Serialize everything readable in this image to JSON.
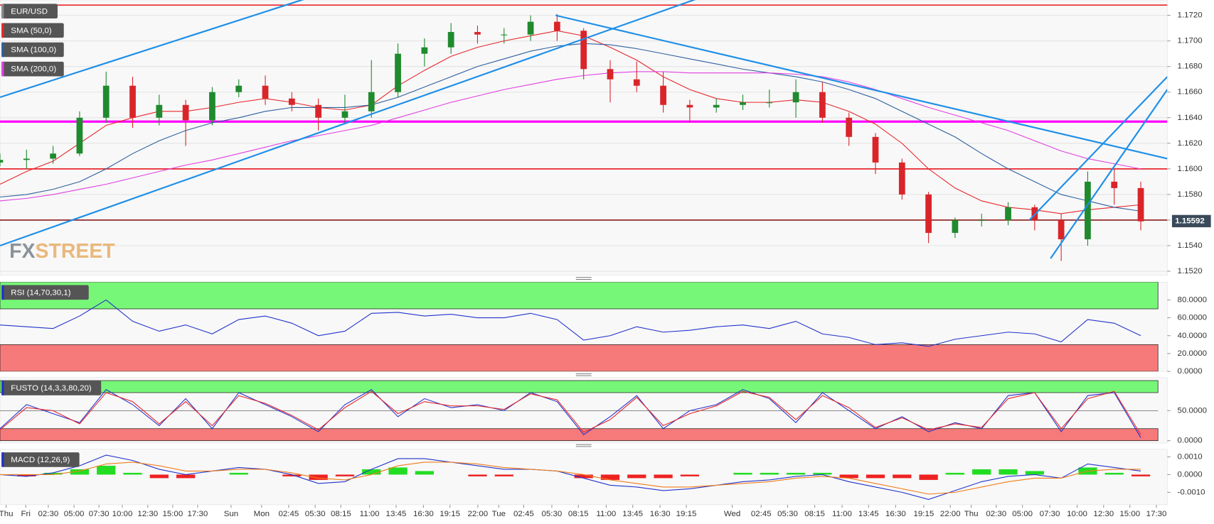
{
  "chart_data": [
    {
      "type": "candlestick",
      "title": "EUR/USD",
      "x": [
        0,
        10,
        20,
        30,
        40,
        50,
        60,
        70,
        80,
        90,
        100,
        110,
        120,
        130,
        140,
        150,
        160,
        170,
        180,
        190,
        200,
        210,
        220,
        230,
        240,
        250,
        260,
        270,
        280,
        290,
        300,
        310,
        320,
        330,
        340,
        350,
        360,
        370,
        380,
        390,
        400,
        410,
        420,
        430
      ],
      "open": [
        1.1605,
        1.1607,
        1.1608,
        1.1612,
        1.164,
        1.1665,
        1.164,
        1.165,
        1.1638,
        1.166,
        1.1665,
        1.1655,
        1.165,
        1.164,
        1.1645,
        1.166,
        1.169,
        1.1695,
        1.1707,
        1.1705,
        1.1705,
        1.1715,
        1.1708,
        1.1678,
        1.167,
        1.1665,
        1.165,
        1.1648,
        1.165,
        1.1652,
        1.1652,
        1.166,
        1.164,
        1.1625,
        1.1605,
        1.158,
        1.155,
        1.156,
        1.156,
        1.157,
        1.156,
        1.1545,
        1.159,
        1.1585
      ],
      "high": [
        1.1612,
        1.1615,
        1.1618,
        1.1645,
        1.1676,
        1.1672,
        1.1658,
        1.1654,
        1.1664,
        1.167,
        1.1673,
        1.166,
        1.1655,
        1.1658,
        1.1685,
        1.1698,
        1.1702,
        1.1714,
        1.1712,
        1.171,
        1.172,
        1.1721,
        1.171,
        1.1685,
        1.1684,
        1.1676,
        1.1654,
        1.1655,
        1.1658,
        1.1662,
        1.167,
        1.1668,
        1.1644,
        1.1628,
        1.1608,
        1.1582,
        1.1562,
        1.1565,
        1.1574,
        1.1572,
        1.1565,
        1.1598,
        1.16,
        1.159
      ],
      "low": [
        1.1602,
        1.16,
        1.1604,
        1.161,
        1.1636,
        1.1632,
        1.1634,
        1.1618,
        1.1634,
        1.1656,
        1.165,
        1.1645,
        1.163,
        1.1636,
        1.164,
        1.1656,
        1.168,
        1.169,
        1.1698,
        1.1698,
        1.17,
        1.17,
        1.167,
        1.1652,
        1.166,
        1.1644,
        1.1636,
        1.1644,
        1.1646,
        1.1648,
        1.164,
        1.1636,
        1.1618,
        1.1596,
        1.1576,
        1.1542,
        1.1546,
        1.1555,
        1.1556,
        1.1552,
        1.1528,
        1.154,
        1.1572,
        1.1552
      ],
      "close": [
        1.1607,
        1.1608,
        1.1612,
        1.164,
        1.1665,
        1.164,
        1.165,
        1.1638,
        1.166,
        1.1665,
        1.1655,
        1.165,
        1.164,
        1.1645,
        1.166,
        1.169,
        1.1695,
        1.1707,
        1.1705,
        1.1705,
        1.1715,
        1.1708,
        1.1678,
        1.167,
        1.1665,
        1.165,
        1.1648,
        1.165,
        1.1652,
        1.1652,
        1.166,
        1.164,
        1.1625,
        1.1605,
        1.158,
        1.155,
        1.156,
        1.156,
        1.157,
        1.156,
        1.1545,
        1.159,
        1.1585,
        1.1559
      ],
      "up_color": "#1f8a2e",
      "down_color": "#d9252a",
      "series": [
        {
          "name": "SMA (50,0)",
          "color": "#e8262b",
          "values": [
            1.1588,
            1.1598,
            1.1606,
            1.162,
            1.1634,
            1.164,
            1.1645,
            1.1645,
            1.1648,
            1.1652,
            1.1655,
            1.1652,
            1.1648,
            1.1646,
            1.165,
            1.1665,
            1.1677,
            1.1688,
            1.1695,
            1.17,
            1.1704,
            1.1708,
            1.1704,
            1.1695,
            1.1685,
            1.1672,
            1.1662,
            1.1655,
            1.1652,
            1.1652,
            1.1654,
            1.1652,
            1.1645,
            1.1635,
            1.162,
            1.16,
            1.1585,
            1.1575,
            1.157,
            1.1568,
            1.1565,
            1.1568,
            1.157,
            1.1572
          ]
        },
        {
          "name": "SMA (100,0)",
          "color": "#2f5f9e",
          "values": [
            1.1578,
            1.158,
            1.1584,
            1.159,
            1.16,
            1.1612,
            1.1622,
            1.163,
            1.1636,
            1.164,
            1.1645,
            1.1648,
            1.1648,
            1.1648,
            1.165,
            1.1656,
            1.1664,
            1.1672,
            1.168,
            1.1686,
            1.1692,
            1.1696,
            1.1698,
            1.1697,
            1.1694,
            1.169,
            1.1686,
            1.1682,
            1.1678,
            1.1675,
            1.1672,
            1.1668,
            1.1662,
            1.1655,
            1.1645,
            1.1635,
            1.1625,
            1.1612,
            1.16,
            1.159,
            1.158,
            1.1575,
            1.157,
            1.1567
          ]
        },
        {
          "name": "SMA (200,0)",
          "color": "#e040e0",
          "values": [
            1.1575,
            1.1577,
            1.158,
            1.1584,
            1.1588,
            1.1593,
            1.1598,
            1.1603,
            1.1607,
            1.1612,
            1.1617,
            1.1622,
            1.1626,
            1.163,
            1.1634,
            1.164,
            1.1646,
            1.1652,
            1.1657,
            1.1662,
            1.1666,
            1.167,
            1.1673,
            1.1675,
            1.1676,
            1.1676,
            1.1675,
            1.1675,
            1.1675,
            1.1675,
            1.1674,
            1.1672,
            1.1668,
            1.1662,
            1.1655,
            1.1648,
            1.1642,
            1.1636,
            1.163,
            1.1622,
            1.1614,
            1.1608,
            1.1604,
            1.16
          ]
        }
      ],
      "levels": [
        {
          "value": 1.1728,
          "color": "#e8262b",
          "width": 1.5
        },
        {
          "value": 1.1637,
          "color": "#ff00ff",
          "width": 3
        },
        {
          "value": 1.16,
          "color": "#e8262b",
          "width": 1.5
        },
        {
          "value": 1.156,
          "color": "#8b1a1a",
          "width": 1.5
        }
      ],
      "trendlines": [
        {
          "from": [
            0,
            1.1656
          ],
          "to": [
            115.2,
            1.1733
          ],
          "color": "#1e8fe8"
        },
        {
          "from": [
            0,
            1.154
          ],
          "to": [
            262.8,
            1.1733
          ],
          "color": "#1e8fe8"
        },
        {
          "from": [
            209.4,
            1.172
          ],
          "to": [
            440,
            1.1608
          ],
          "color": "#1e8fe8"
        },
        {
          "from": [
            388,
            1.156
          ],
          "to": [
            440,
            1.1672
          ],
          "color": "#1e8fe8"
        },
        {
          "from": [
            396,
            1.153
          ],
          "to": [
            440,
            1.1662
          ],
          "color": "#1e8fe8"
        }
      ],
      "last_price": 1.15592,
      "watermark": {
        "prefix": "FX",
        "suffix": "STREET"
      },
      "ylim": [
        1.1517,
        1.1732
      ],
      "yticks": [
        {
          "value": 1.152,
          "label": "1.1520"
        },
        {
          "value": 1.154,
          "label": "1.1540"
        },
        {
          "value": 1.156,
          "label": "1.1560"
        },
        {
          "value": 1.158,
          "label": "1.1580"
        },
        {
          "value": 1.16,
          "label": "1.1600"
        },
        {
          "value": 1.162,
          "label": "1.1620"
        },
        {
          "value": 1.164,
          "label": "1.1640"
        },
        {
          "value": 1.166,
          "label": "1.1660"
        },
        {
          "value": 1.168,
          "label": "1.1680"
        },
        {
          "value": 1.17,
          "label": "1.1700"
        },
        {
          "value": 1.172,
          "label": "1.1720"
        }
      ],
      "grid": true,
      "xlim": [
        0,
        440
      ],
      "xticks": [
        {
          "value": 2.3,
          "label": "Thu"
        },
        {
          "value": 9.7,
          "label": "Fri"
        },
        {
          "value": 18.2,
          "label": "02:30"
        },
        {
          "value": 27.9,
          "label": "05:00"
        },
        {
          "value": 37.3,
          "label": "07:30"
        },
        {
          "value": 46.1,
          "label": "10:00"
        },
        {
          "value": 55.7,
          "label": "12:30"
        },
        {
          "value": 65.1,
          "label": "15:00"
        },
        {
          "value": 74.5,
          "label": "17:30"
        },
        {
          "value": 87.1,
          "label": "Sun"
        },
        {
          "value": 98.6,
          "label": "Mon"
        },
        {
          "value": 108.8,
          "label": "02:45"
        },
        {
          "value": 118.8,
          "label": "05:30"
        },
        {
          "value": 128.5,
          "label": "08:15"
        },
        {
          "value": 139.3,
          "label": "11:00"
        },
        {
          "value": 149.3,
          "label": "13:45"
        },
        {
          "value": 159.6,
          "label": "16:30"
        },
        {
          "value": 169.6,
          "label": "19:15"
        },
        {
          "value": 180.1,
          "label": "22:00"
        },
        {
          "value": 188,
          "label": "Tue"
        },
        {
          "value": 197.4,
          "label": "02:45"
        },
        {
          "value": 208,
          "label": "05:30"
        },
        {
          "value": 218,
          "label": "08:15"
        },
        {
          "value": 228.5,
          "label": "11:00"
        },
        {
          "value": 238.5,
          "label": "13:45"
        },
        {
          "value": 248.8,
          "label": "16:30"
        },
        {
          "value": 258.7,
          "label": "19:15"
        },
        {
          "value": 276,
          "label": "Wed"
        },
        {
          "value": 286.9,
          "label": "02:45"
        },
        {
          "value": 296.9,
          "label": "05:30"
        },
        {
          "value": 307.1,
          "label": "08:15"
        },
        {
          "value": 317.4,
          "label": "11:00"
        },
        {
          "value": 327.4,
          "label": "13:45"
        },
        {
          "value": 337.6,
          "label": "16:30"
        },
        {
          "value": 348.2,
          "label": "19:15"
        },
        {
          "value": 358.2,
          "label": "22:00"
        },
        {
          "value": 366.1,
          "label": "Thu"
        },
        {
          "value": 375.5,
          "label": "02:30"
        },
        {
          "value": 385.4,
          "label": "05:00"
        },
        {
          "value": 395.7,
          "label": "07:30"
        },
        {
          "value": 406,
          "label": "10:00"
        },
        {
          "value": 416,
          "label": "12:30"
        },
        {
          "value": 425.9,
          "label": "15:00"
        },
        {
          "value": 435.9,
          "label": "17:30"
        }
      ]
    },
    {
      "type": "line",
      "title": "RSI (14,70,30,1)",
      "series": [
        {
          "color": "#2233cc",
          "values": [
            52,
            50,
            48,
            62,
            80,
            56,
            45,
            52,
            42,
            58,
            62,
            54,
            40,
            45,
            65,
            66,
            62,
            64,
            60,
            60,
            65,
            58,
            35,
            40,
            50,
            44,
            46,
            50,
            52,
            48,
            56,
            42,
            38,
            30,
            32,
            28,
            36,
            40,
            44,
            42,
            33,
            58,
            54,
            40
          ]
        }
      ],
      "zones": [
        {
          "range": [
            70,
            100
          ],
          "color": "#77f777"
        },
        {
          "range": [
            0,
            30
          ],
          "color": "#f77a7a"
        }
      ],
      "ylim": [
        0,
        100
      ],
      "yticks": [
        {
          "value": 0,
          "label": "0.0000"
        },
        {
          "value": 20,
          "label": "20.0000"
        },
        {
          "value": 40,
          "label": "40.0000"
        },
        {
          "value": 60,
          "label": "60.0000"
        },
        {
          "value": 80,
          "label": "80.0000"
        }
      ]
    },
    {
      "type": "line",
      "title": "FUSTO (14,3,3,80,20)",
      "series": [
        {
          "color": "#2233cc",
          "values": [
            20,
            60,
            45,
            30,
            85,
            60,
            25,
            70,
            20,
            80,
            60,
            40,
            15,
            60,
            85,
            40,
            70,
            55,
            60,
            50,
            80,
            65,
            10,
            40,
            75,
            20,
            50,
            60,
            85,
            70,
            30,
            80,
            50,
            20,
            40,
            15,
            30,
            20,
            75,
            80,
            15,
            75,
            80,
            5
          ]
        },
        {
          "color": "#e8262b",
          "values": [
            18,
            55,
            50,
            28,
            80,
            65,
            28,
            65,
            25,
            75,
            62,
            42,
            18,
            55,
            82,
            45,
            65,
            58,
            58,
            52,
            78,
            68,
            14,
            35,
            72,
            25,
            45,
            58,
            82,
            72,
            35,
            75,
            55,
            22,
            38,
            18,
            28,
            22,
            70,
            80,
            20,
            70,
            82,
            10
          ]
        }
      ],
      "zones": [
        {
          "range": [
            80,
            100
          ],
          "color": "#77f777"
        },
        {
          "range": [
            0,
            20
          ],
          "color": "#f77a7a"
        }
      ],
      "midline": 50,
      "ylim": [
        -4,
        105
      ],
      "yticks": [
        {
          "value": 0,
          "label": "0.0000"
        },
        {
          "value": 50,
          "label": "50.0000"
        }
      ]
    },
    {
      "type": "macd",
      "title": "MACD (12,26,9)",
      "series": [
        {
          "color": "#2233cc",
          "values": [
            0,
            -0.0001,
            0.0001,
            0.0005,
            0.0011,
            0.0008,
            0.0003,
            0,
            0.0002,
            0.0004,
            0.0003,
            0,
            -0.0005,
            -0.0004,
            0.0003,
            0.0009,
            0.0009,
            0.0007,
            0.0005,
            0.0003,
            0.0003,
            0.0002,
            -0.0002,
            -0.0006,
            -0.0007,
            -0.0009,
            -0.0008,
            -0.0006,
            -0.0004,
            -0.0003,
            -0.0001,
            0,
            -0.0004,
            -0.0007,
            -0.001,
            -0.0014,
            -0.0009,
            -0.0004,
            -0.0001,
            0,
            -0.0002,
            0.0006,
            0.0004,
            0.0002
          ]
        },
        {
          "color": "#f07d1a",
          "values": [
            0,
            0,
            0,
            0.0002,
            0.0006,
            0.0007,
            0.0005,
            0.0002,
            0.0002,
            0.0003,
            0.0003,
            0.0001,
            -0.0002,
            -0.0003,
            0,
            0.0005,
            0.0007,
            0.0007,
            0.0006,
            0.0004,
            0.0003,
            0.0002,
            0,
            -0.0003,
            -0.0005,
            -0.0007,
            -0.0007,
            -0.0006,
            -0.0005,
            -0.0004,
            -0.0002,
            -0.0001,
            -0.0002,
            -0.0005,
            -0.0008,
            -0.0011,
            -0.001,
            -0.0007,
            -0.0004,
            -0.0002,
            -0.0002,
            0.0002,
            0.0003,
            0.0003
          ]
        }
      ],
      "histogram": {
        "up_color": "#22dd22",
        "down_color": "#ee2222",
        "values": [
          0,
          -0.0001,
          0.0001,
          0.0003,
          0.0005,
          0.0001,
          -0.0002,
          -0.0002,
          0,
          0.0001,
          0,
          -0.0001,
          -0.0003,
          -0.0001,
          0.0003,
          0.0004,
          0.0002,
          0,
          -0.0001,
          -0.0001,
          0,
          0,
          -0.0002,
          -0.0003,
          -0.0002,
          -0.0002,
          -0.0001,
          0,
          0.0001,
          0.0001,
          0.0001,
          0.0001,
          -0.0002,
          -0.0002,
          -0.0002,
          -0.0003,
          0.0001,
          0.0003,
          0.0003,
          0.0002,
          0,
          0.0004,
          0.0001,
          -0.0001
        ]
      },
      "ylim": [
        -0.0017,
        0.00143
      ],
      "yticks": [
        {
          "value": -0.001,
          "label": "-0.0010"
        },
        {
          "value": 0,
          "label": "0.0000"
        },
        {
          "value": 0.001,
          "label": "0.0010"
        }
      ]
    }
  ]
}
